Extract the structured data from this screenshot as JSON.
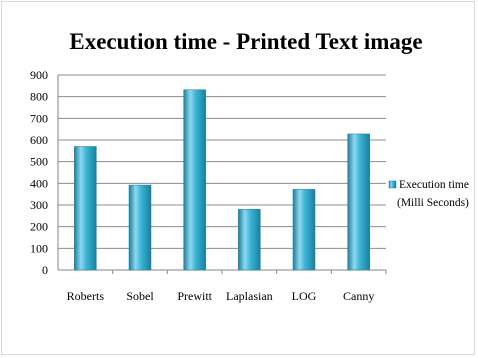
{
  "chart_data": {
    "type": "bar",
    "title": "Execution time - Printed Text image",
    "categories": [
      "Roberts",
      "Sobel",
      "Prewitt",
      "Laplasian",
      "LOG",
      "Canny"
    ],
    "series": [
      {
        "name": "Execution time (Milli Seconds)",
        "name_lines": [
          "Execution time",
          "(Milli Seconds)"
        ],
        "values": [
          570,
          392,
          832,
          280,
          372,
          628
        ]
      }
    ],
    "ylim": [
      0,
      900
    ],
    "yticks": [
      0,
      100,
      200,
      300,
      400,
      500,
      600,
      700,
      800,
      900
    ],
    "xlabel": "",
    "ylabel": "",
    "grid": true,
    "legend_position": "right",
    "colors": {
      "bar_light": "#8fd9ee",
      "bar_mid": "#3bb4d6",
      "bar_dark": "#1b7f9d",
      "grid": "#8c8c8c",
      "axis": "#868686"
    }
  }
}
